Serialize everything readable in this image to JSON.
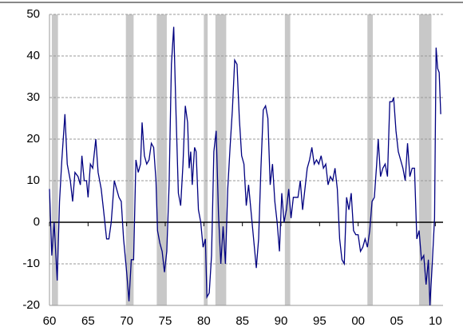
{
  "chart_data": {
    "type": "line",
    "x": [
      1960.0,
      1960.3,
      1960.6,
      1961.0,
      1961.3,
      1961.6,
      1962.0,
      1962.3,
      1962.7,
      1963.0,
      1963.3,
      1963.7,
      1964.0,
      1964.2,
      1964.5,
      1964.8,
      1965.0,
      1965.3,
      1965.6,
      1966.0,
      1966.3,
      1966.7,
      1967.0,
      1967.4,
      1967.7,
      1968.0,
      1968.4,
      1968.7,
      1969.0,
      1969.3,
      1969.6,
      1970.0,
      1970.3,
      1970.6,
      1970.9,
      1971.2,
      1971.5,
      1971.8,
      1972.0,
      1972.3,
      1972.6,
      1972.9,
      1973.2,
      1973.5,
      1973.8,
      1974.0,
      1974.3,
      1974.6,
      1974.9,
      1975.2,
      1975.5,
      1975.8,
      1976.1,
      1976.4,
      1976.7,
      1977.0,
      1977.3,
      1977.6,
      1977.9,
      1978.1,
      1978.3,
      1978.5,
      1978.8,
      1979.0,
      1979.3,
      1979.6,
      1979.9,
      1980.2,
      1980.4,
      1980.7,
      1981.0,
      1981.3,
      1981.6,
      1981.9,
      1982.2,
      1982.5,
      1982.8,
      1983.1,
      1983.4,
      1983.7,
      1984.0,
      1984.3,
      1984.6,
      1984.9,
      1985.2,
      1985.5,
      1985.8,
      1986.1,
      1986.5,
      1986.8,
      1987.1,
      1987.4,
      1987.7,
      1988.0,
      1988.3,
      1988.6,
      1988.9,
      1989.2,
      1989.5,
      1989.8,
      1990.1,
      1990.4,
      1990.7,
      1991.0,
      1991.3,
      1991.6,
      1991.9,
      1992.2,
      1992.5,
      1992.8,
      1993.1,
      1993.4,
      1993.7,
      1994.0,
      1994.3,
      1994.6,
      1994.9,
      1995.2,
      1995.5,
      1995.8,
      1996.1,
      1996.4,
      1996.7,
      1997.0,
      1997.3,
      1997.6,
      1997.9,
      1998.2,
      1998.5,
      1998.8,
      1999.1,
      1999.4,
      1999.7,
      2000.0,
      2000.3,
      2000.6,
      2000.9,
      2001.2,
      2001.5,
      2001.8,
      2002.1,
      2002.4,
      2002.6,
      2002.9,
      2003.2,
      2003.5,
      2003.8,
      2004.1,
      2004.4,
      2004.6,
      2004.9,
      2005.2,
      2005.5,
      2005.8,
      2006.1,
      2006.4,
      2006.7,
      2007.0,
      2007.3,
      2007.6,
      2007.9,
      2008.2,
      2008.5,
      2008.8,
      2009.1,
      2009.3,
      2009.6,
      2009.9,
      2010.1,
      2010.3,
      2010.5,
      2010.7
    ],
    "series": [
      {
        "color": "#000080",
        "values": [
          8,
          -8,
          0,
          -14,
          5,
          15,
          26,
          14,
          10,
          5,
          12,
          11,
          9,
          16,
          10,
          10,
          6,
          14,
          13,
          20,
          12,
          8,
          3,
          -4,
          -4,
          0,
          10,
          8,
          6,
          5,
          -4,
          -12,
          -19,
          -9,
          -9,
          15,
          12,
          14,
          24,
          16,
          14,
          15,
          19,
          18,
          10,
          -2,
          -5,
          -7,
          -12,
          -7,
          9,
          38,
          47,
          26,
          7,
          4,
          14,
          28,
          24,
          13,
          17,
          9,
          18,
          17,
          3,
          0,
          -6,
          -4,
          -18,
          -17,
          -8,
          17,
          22,
          2,
          -10,
          -1,
          -10,
          8,
          18,
          27,
          39,
          38,
          25,
          16,
          14,
          4,
          9,
          3,
          -5,
          -11,
          -4,
          13,
          27,
          28,
          25,
          9,
          14,
          5,
          0,
          -7,
          7,
          0,
          3,
          8,
          1,
          6,
          6,
          6,
          10,
          3,
          8,
          13,
          15,
          18,
          14,
          15,
          14,
          16,
          13,
          14,
          9,
          11,
          10,
          13,
          8,
          -4,
          -9,
          -10,
          6,
          3,
          7,
          -2,
          -3,
          -3,
          -7,
          -6,
          -4,
          -6,
          -2,
          5,
          6,
          14,
          20,
          11,
          13,
          14,
          11,
          29,
          29,
          30,
          22,
          17,
          15,
          13,
          10,
          19,
          11,
          13,
          13,
          -4,
          -2,
          -9,
          -8,
          -15,
          -9,
          -20,
          -10,
          1,
          42,
          37,
          36,
          26
        ]
      }
    ],
    "shading": [
      [
        1960.3,
        1961.1
      ],
      [
        1969.9,
        1970.9
      ],
      [
        1973.9,
        1975.2
      ],
      [
        1980.0,
        1980.5
      ],
      [
        1981.5,
        1982.9
      ],
      [
        1990.5,
        1991.2
      ],
      [
        2001.2,
        2001.9
      ],
      [
        2007.9,
        2009.5
      ]
    ],
    "shading_color": "#c8c8c8",
    "xlim": [
      1960,
      2011
    ],
    "ylim": [
      -20,
      50
    ],
    "xticks": [
      {
        "value": 1960,
        "label": "60"
      },
      {
        "value": 1965,
        "label": "65"
      },
      {
        "value": 1970,
        "label": "70"
      },
      {
        "value": 1975,
        "label": "75"
      },
      {
        "value": 1980,
        "label": "80"
      },
      {
        "value": 1985,
        "label": "85"
      },
      {
        "value": 1990,
        "label": "90"
      },
      {
        "value": 1995,
        "label": "95"
      },
      {
        "value": 2000,
        "label": "00"
      },
      {
        "value": 2005,
        "label": "05"
      },
      {
        "value": 2010,
        "label": "10"
      }
    ],
    "yticks": [
      -20,
      -10,
      0,
      10,
      20,
      30,
      40,
      50
    ],
    "grid": true
  }
}
